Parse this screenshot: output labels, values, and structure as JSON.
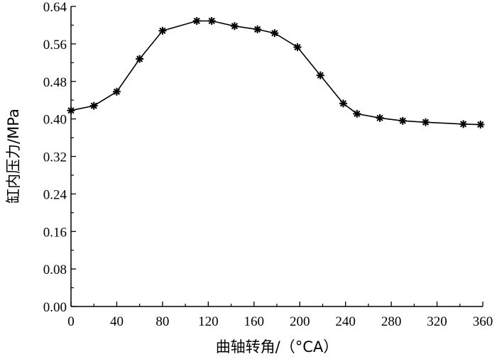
{
  "chart_data": {
    "type": "line",
    "title": "",
    "xlabel": "曲轴转角/（°CA）",
    "ylabel": "缸内压力/MPa",
    "xlim": [
      0,
      360
    ],
    "ylim": [
      0,
      0.64
    ],
    "xticks": [
      "0",
      "40",
      "80",
      "120",
      "160",
      "200",
      "240",
      "280",
      "320",
      "360"
    ],
    "yticks": [
      "0.00",
      "0.08",
      "0.16",
      "0.24",
      "0.32",
      "0.40",
      "0.48",
      "0.56",
      "0.64"
    ],
    "grid": false,
    "legend": "none",
    "marker": "asterisk",
    "color": "#000000",
    "x": [
      0,
      20,
      40,
      60,
      80,
      110,
      123,
      143,
      163,
      178,
      198,
      218,
      238,
      250,
      270,
      290,
      310,
      343,
      358
    ],
    "y": [
      0.418,
      0.428,
      0.458,
      0.528,
      0.588,
      0.609,
      0.609,
      0.598,
      0.591,
      0.583,
      0.553,
      0.493,
      0.433,
      0.411,
      0.402,
      0.396,
      0.393,
      0.389,
      0.388
    ]
  }
}
